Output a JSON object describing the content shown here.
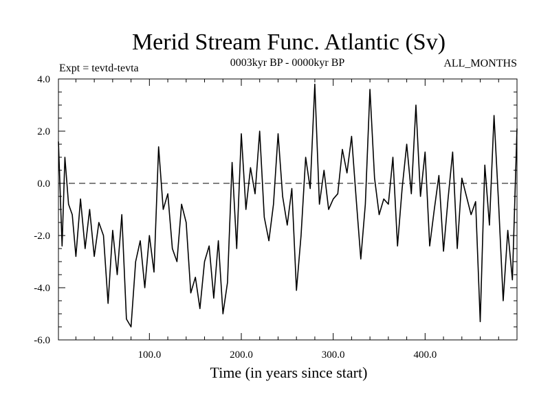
{
  "chart_data": {
    "type": "line",
    "title": "Merid Stream Func. Atlantic (Sv)",
    "subtitle_left": "Expt = tevtd-tevta",
    "subtitle_center": "0003kyr BP - 0000kyr BP",
    "subtitle_right": "ALL_MONTHS",
    "xlabel": "Time (in years since start)",
    "ylabel": "",
    "xlim": [
      1,
      500
    ],
    "ylim": [
      -6.0,
      4.0
    ],
    "x_ticks": [
      100,
      200,
      300,
      400
    ],
    "x_tick_labels": [
      "100.0",
      "200.0",
      "300.0",
      "400.0"
    ],
    "y_ticks": [
      -6,
      -4,
      -2,
      0,
      2,
      4
    ],
    "y_tick_labels": [
      "-6.0",
      "-4.0",
      "-2.0",
      "0.0",
      "2.0",
      "4.0"
    ],
    "reference_line": {
      "y": 0.0,
      "style": "dashed"
    },
    "series": [
      {
        "name": "Merid Stream Func. Atlantic",
        "x": [
          1,
          5,
          8,
          12,
          16,
          20,
          25,
          30,
          35,
          40,
          45,
          50,
          55,
          60,
          65,
          70,
          75,
          80,
          85,
          90,
          95,
          100,
          105,
          110,
          115,
          120,
          125,
          130,
          135,
          140,
          145,
          150,
          155,
          160,
          165,
          170,
          175,
          180,
          185,
          190,
          195,
          200,
          205,
          210,
          215,
          220,
          225,
          230,
          235,
          240,
          245,
          250,
          255,
          260,
          265,
          270,
          275,
          280,
          285,
          290,
          295,
          300,
          305,
          310,
          315,
          320,
          325,
          330,
          335,
          340,
          345,
          350,
          355,
          360,
          365,
          370,
          375,
          380,
          385,
          390,
          395,
          400,
          405,
          410,
          415,
          420,
          425,
          430,
          435,
          440,
          445,
          450,
          455,
          460,
          465,
          470,
          475,
          480,
          485,
          490,
          495,
          500
        ],
        "values": [
          1.6,
          -2.4,
          1.0,
          -0.8,
          -1.2,
          -2.8,
          -0.6,
          -2.5,
          -1.0,
          -2.8,
          -1.5,
          -2.0,
          -4.6,
          -1.8,
          -3.5,
          -1.2,
          -5.2,
          -5.5,
          -3.0,
          -2.2,
          -4.0,
          -2.0,
          -3.4,
          1.4,
          -1.0,
          -0.4,
          -2.5,
          -3.0,
          -0.8,
          -1.5,
          -4.2,
          -3.6,
          -4.8,
          -3.0,
          -2.4,
          -4.4,
          -2.2,
          -5.0,
          -3.8,
          0.8,
          -2.5,
          1.9,
          -1.0,
          0.6,
          -0.4,
          2.0,
          -1.3,
          -2.2,
          -0.8,
          1.9,
          -0.5,
          -1.6,
          -0.2,
          -4.1,
          -2.0,
          1.0,
          -0.2,
          3.8,
          -0.8,
          0.5,
          -1.0,
          -0.6,
          -0.4,
          1.3,
          0.4,
          1.8,
          -0.6,
          -2.9,
          -0.8,
          3.6,
          0.2,
          -1.2,
          -0.6,
          -0.8,
          1.0,
          -2.4,
          -0.2,
          1.5,
          -0.4,
          3.0,
          -0.5,
          1.2,
          -2.4,
          -1.0,
          0.3,
          -2.6,
          -0.6,
          1.2,
          -2.5,
          0.2,
          -0.5,
          -1.2,
          -0.7,
          -5.3,
          0.7,
          -1.6,
          2.6,
          -0.8,
          -4.5,
          -1.8,
          -3.7,
          2.1
        ]
      }
    ]
  }
}
